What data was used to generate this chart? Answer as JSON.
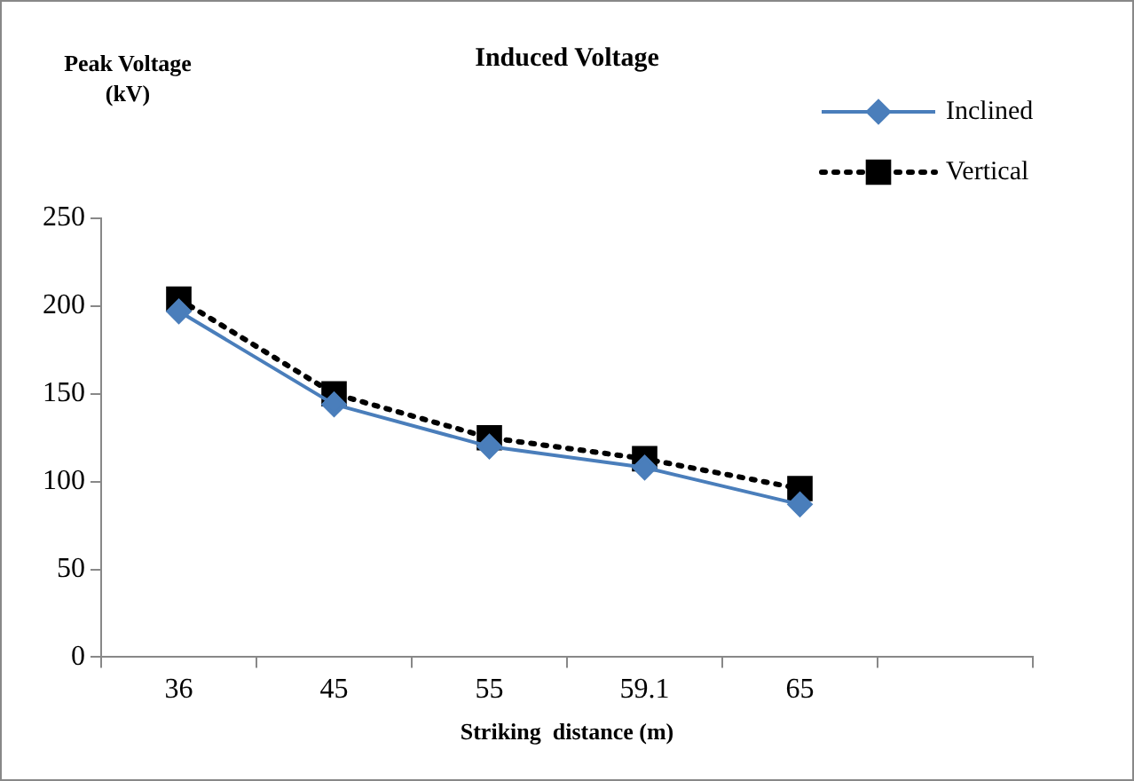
{
  "chart_data": {
    "type": "line",
    "title": "Induced Voltage",
    "xlabel": "Striking  distance (m)",
    "ylabel": "Peak Voltage (kV)",
    "categories": [
      "36",
      "45",
      "55",
      "59.1",
      "65",
      null
    ],
    "series": [
      {
        "name": "Inclined",
        "color": "#4a7ebb",
        "marker": "diamond",
        "line_style": "solid",
        "values": [
          197,
          144,
          120,
          108,
          87,
          null
        ]
      },
      {
        "name": "Vertical",
        "color": "#000000",
        "marker": "square",
        "line_style": "dotted",
        "values": [
          204,
          150,
          125,
          113,
          96,
          null
        ]
      }
    ],
    "ylim": [
      0,
      250
    ],
    "yticks": [
      0,
      50,
      100,
      150,
      200,
      250
    ],
    "grid": false,
    "legend": "top right"
  }
}
